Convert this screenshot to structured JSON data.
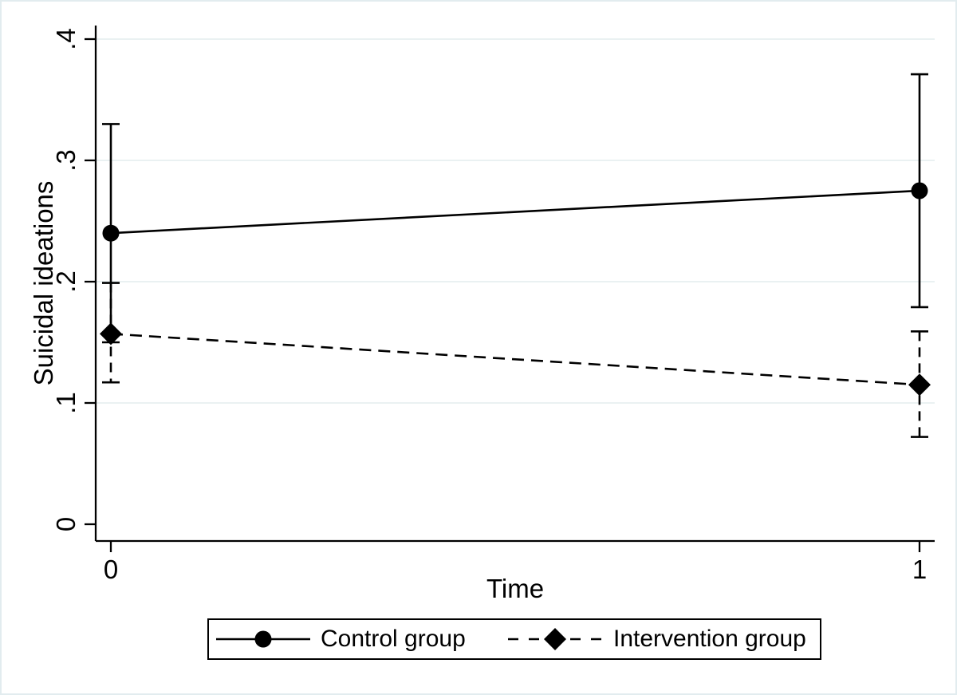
{
  "figure": {
    "background": "#ffffff",
    "frame_border_color": "#e2ecef"
  },
  "chart_data": {
    "type": "line",
    "title": "",
    "xlabel": "Time",
    "ylabel": "Suicidal ideations",
    "x": [
      0,
      1
    ],
    "xtick_labels": [
      "0",
      "1"
    ],
    "ylim": [
      0,
      0.4
    ],
    "yticks": [
      0,
      0.1,
      0.2,
      0.3,
      0.4
    ],
    "ytick_labels": [
      "0",
      ".1",
      ".2",
      ".3",
      ".4"
    ],
    "grid": true,
    "grid_color": "#e7eff1",
    "axis_color": "#000000",
    "legend_position": "bottom-center",
    "series": [
      {
        "name": "Control group",
        "color": "#000000",
        "marker": "circle",
        "line_style": "solid",
        "values": [
          0.24,
          0.275
        ],
        "ci_lower": [
          0.15,
          0.179
        ],
        "ci_upper": [
          0.33,
          0.371
        ]
      },
      {
        "name": "Intervention group",
        "color": "#000000",
        "marker": "diamond",
        "line_style": "dashed",
        "values": [
          0.157,
          0.115
        ],
        "ci_lower": [
          0.117,
          0.072
        ],
        "ci_upper": [
          0.199,
          0.159
        ]
      }
    ]
  }
}
